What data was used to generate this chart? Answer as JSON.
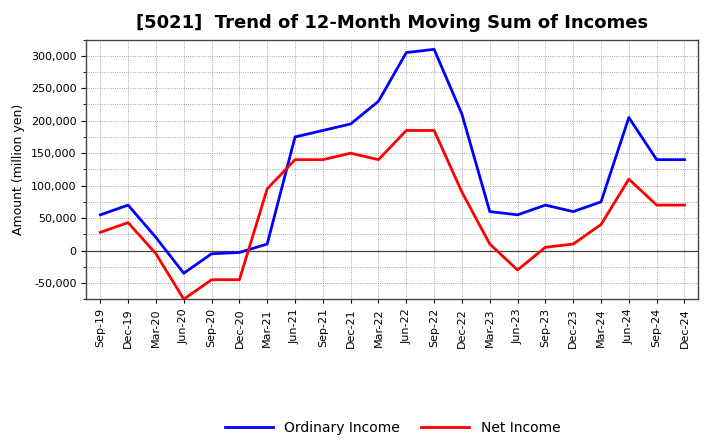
{
  "title": "[5021]  Trend of 12-Month Moving Sum of Incomes",
  "ylabel": "Amount (million yen)",
  "labels": [
    "Sep-19",
    "Dec-19",
    "Mar-20",
    "Jun-20",
    "Sep-20",
    "Dec-20",
    "Mar-21",
    "Jun-21",
    "Sep-21",
    "Dec-21",
    "Mar-22",
    "Jun-22",
    "Sep-22",
    "Dec-22",
    "Mar-23",
    "Jun-23",
    "Sep-23",
    "Dec-23",
    "Mar-24",
    "Jun-24",
    "Sep-24",
    "Dec-24"
  ],
  "ordinary_income": [
    55000,
    70000,
    20000,
    -35000,
    -5000,
    -3000,
    10000,
    175000,
    185000,
    195000,
    230000,
    305000,
    310000,
    210000,
    60000,
    55000,
    70000,
    60000,
    75000,
    205000,
    140000,
    140000
  ],
  "net_income": [
    28000,
    43000,
    -5000,
    -75000,
    -45000,
    -45000,
    95000,
    140000,
    140000,
    150000,
    140000,
    185000,
    185000,
    90000,
    10000,
    -30000,
    5000,
    10000,
    40000,
    110000,
    70000,
    70000
  ],
  "ordinary_color": "#0000FF",
  "net_color": "#FF0000",
  "ylim": [
    -75000,
    325000
  ],
  "yticks": [
    -50000,
    0,
    50000,
    100000,
    150000,
    200000,
    250000,
    300000
  ],
  "background_color": "#FFFFFF",
  "title_fontsize": 13,
  "axis_label_fontsize": 9,
  "tick_fontsize": 8,
  "legend_fontsize": 10,
  "line_width": 2.0
}
